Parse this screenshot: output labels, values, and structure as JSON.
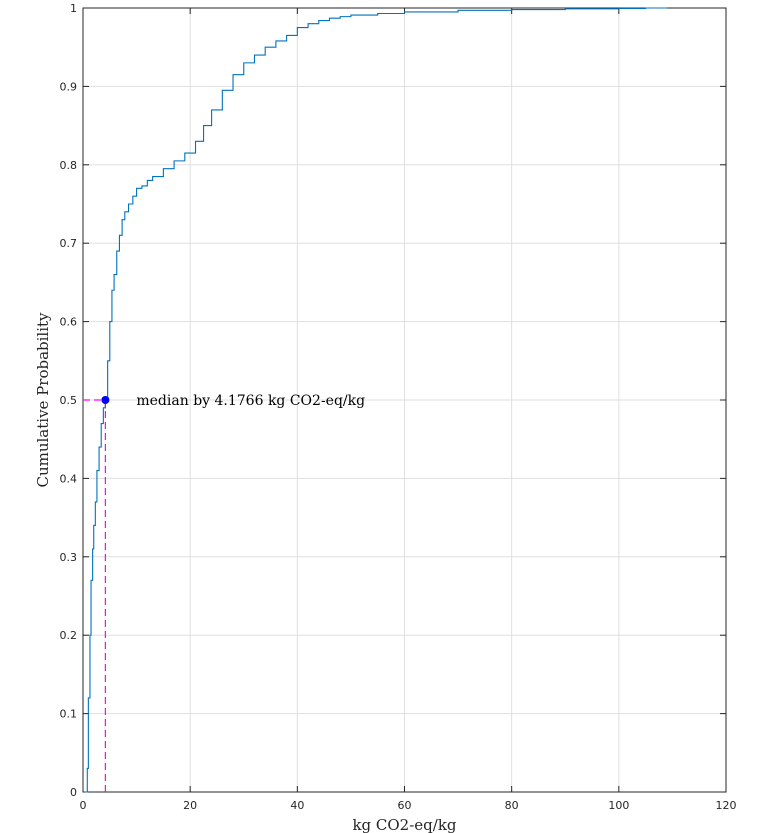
{
  "chart_data": {
    "type": "line",
    "title": "",
    "xlabel": "kg CO2-eq/kg",
    "ylabel": "Cumulative Probability",
    "xlim": [
      0,
      120
    ],
    "ylim": [
      0,
      1
    ],
    "x_ticks": [
      0,
      20,
      40,
      60,
      80,
      100,
      120
    ],
    "y_ticks": [
      0,
      0.1,
      0.2,
      0.3,
      0.4,
      0.5,
      0.6,
      0.7,
      0.8,
      0.9,
      1
    ],
    "grid": true,
    "series": [
      {
        "name": "",
        "color": "#0072BD",
        "x": [
          0.3,
          0.8,
          1.0,
          1.3,
          1.5,
          1.8,
          2.0,
          2.3,
          2.6,
          3.0,
          3.4,
          3.8,
          4.18,
          4.6,
          5.0,
          5.4,
          5.8,
          6.3,
          6.8,
          7.3,
          7.8,
          8.5,
          9.3,
          10.0,
          11.0,
          12.0,
          13.0,
          15.0,
          17.0,
          19.0,
          21.0,
          22.5,
          24.0,
          26.0,
          28.0,
          30.0,
          32.0,
          34.0,
          36.0,
          38.0,
          40.0,
          42.0,
          44.0,
          46.0,
          48.0,
          50.0,
          55.0,
          60.0,
          70.0,
          80.0,
          90.0,
          100.0,
          105.0,
          109.0
        ],
        "y": [
          0.0,
          0.03,
          0.12,
          0.2,
          0.27,
          0.31,
          0.34,
          0.37,
          0.41,
          0.44,
          0.47,
          0.49,
          0.5,
          0.55,
          0.6,
          0.64,
          0.66,
          0.69,
          0.71,
          0.73,
          0.74,
          0.75,
          0.76,
          0.77,
          0.773,
          0.78,
          0.785,
          0.795,
          0.805,
          0.815,
          0.83,
          0.85,
          0.87,
          0.895,
          0.915,
          0.93,
          0.94,
          0.95,
          0.958,
          0.965,
          0.975,
          0.98,
          0.984,
          0.987,
          0.989,
          0.991,
          0.993,
          0.995,
          0.997,
          0.998,
          0.999,
          0.9995,
          1.0,
          1.0
        ]
      }
    ],
    "median": {
      "x": 4.1766,
      "y": 0.5,
      "label": "median by 4.1766 kg CO2-eq/kg"
    },
    "colors": {
      "line": "#0072BD",
      "marker": "#0000FF",
      "guide": "#FF00FF",
      "grid": "#DFDFDF",
      "axis": "#262626"
    }
  }
}
